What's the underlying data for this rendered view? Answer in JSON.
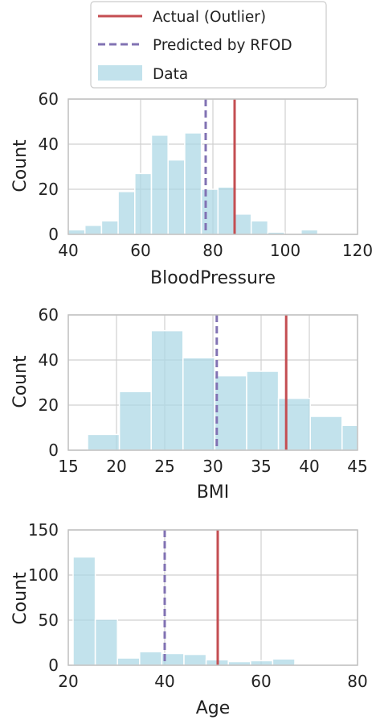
{
  "colors": {
    "actual": "#c44e52",
    "predicted": "#8172b3",
    "bars": "#add8e6",
    "grid": "#d0d0d0",
    "frame": "#c0c0c0"
  },
  "legend": {
    "placement": "top-center",
    "items": [
      {
        "label": "Actual (Outlier)",
        "style": "solid-line",
        "color": "#c44e52"
      },
      {
        "label": "Predicted by RFOD",
        "style": "dashed-line",
        "color": "#8172b3"
      },
      {
        "label": "Data",
        "style": "patch",
        "color": "#add8e6"
      }
    ]
  },
  "chart_data": [
    {
      "type": "bar",
      "xlabel": "BloodPressure",
      "ylabel": "Count",
      "xlim": [
        40,
        120
      ],
      "ylim": [
        0,
        60
      ],
      "xticks": [
        40,
        60,
        80,
        100,
        120
      ],
      "yticks": [
        0,
        20,
        40,
        60
      ],
      "grid": true,
      "bins": [
        {
          "x0": 40,
          "x1": 44.6,
          "count": 2
        },
        {
          "x0": 44.6,
          "x1": 49.2,
          "count": 4
        },
        {
          "x0": 49.2,
          "x1": 53.8,
          "count": 6
        },
        {
          "x0": 53.8,
          "x1": 58.4,
          "count": 19
        },
        {
          "x0": 58.4,
          "x1": 63.0,
          "count": 27
        },
        {
          "x0": 63.0,
          "x1": 67.6,
          "count": 44
        },
        {
          "x0": 67.6,
          "x1": 72.2,
          "count": 33
        },
        {
          "x0": 72.2,
          "x1": 76.8,
          "count": 45
        },
        {
          "x0": 76.8,
          "x1": 81.4,
          "count": 20
        },
        {
          "x0": 81.4,
          "x1": 86.0,
          "count": 21
        },
        {
          "x0": 86.0,
          "x1": 90.6,
          "count": 9
        },
        {
          "x0": 90.6,
          "x1": 95.2,
          "count": 6
        },
        {
          "x0": 95.2,
          "x1": 99.8,
          "count": 1
        },
        {
          "x0": 99.8,
          "x1": 104.4,
          "count": 0
        },
        {
          "x0": 104.4,
          "x1": 109.0,
          "count": 2
        }
      ],
      "actual": 86,
      "predicted": 78
    },
    {
      "type": "bar",
      "xlabel": "BMI",
      "ylabel": "Count",
      "xlim": [
        15,
        45
      ],
      "ylim": [
        0,
        60
      ],
      "xticks": [
        15,
        20,
        25,
        30,
        35,
        40,
        45
      ],
      "yticks": [
        0,
        20,
        40,
        60
      ],
      "grid": true,
      "bins": [
        {
          "x0": 17.0,
          "x1": 20.3,
          "count": 7
        },
        {
          "x0": 20.3,
          "x1": 23.6,
          "count": 26
        },
        {
          "x0": 23.6,
          "x1": 26.9,
          "count": 53
        },
        {
          "x0": 26.9,
          "x1": 30.2,
          "count": 41
        },
        {
          "x0": 30.2,
          "x1": 33.5,
          "count": 33
        },
        {
          "x0": 33.5,
          "x1": 36.8,
          "count": 35
        },
        {
          "x0": 36.8,
          "x1": 40.1,
          "count": 23
        },
        {
          "x0": 40.1,
          "x1": 43.4,
          "count": 15
        },
        {
          "x0": 43.4,
          "x1": 46.7,
          "count": 11
        }
      ],
      "actual": 37.6,
      "predicted": 30.4
    },
    {
      "type": "bar",
      "xlabel": "Age",
      "ylabel": "Count",
      "xlim": [
        20,
        80
      ],
      "ylim": [
        0,
        150
      ],
      "xticks": [
        20,
        40,
        60,
        80
      ],
      "yticks": [
        0,
        50,
        100,
        150
      ],
      "grid": true,
      "bins": [
        {
          "x0": 21.0,
          "x1": 25.6,
          "count": 120
        },
        {
          "x0": 25.6,
          "x1": 30.2,
          "count": 51
        },
        {
          "x0": 30.2,
          "x1": 34.8,
          "count": 8
        },
        {
          "x0": 34.8,
          "x1": 39.4,
          "count": 15
        },
        {
          "x0": 39.4,
          "x1": 44.0,
          "count": 13
        },
        {
          "x0": 44.0,
          "x1": 48.6,
          "count": 12
        },
        {
          "x0": 48.6,
          "x1": 53.2,
          "count": 6
        },
        {
          "x0": 53.2,
          "x1": 57.8,
          "count": 4
        },
        {
          "x0": 57.8,
          "x1": 62.4,
          "count": 5
        },
        {
          "x0": 62.4,
          "x1": 67.0,
          "count": 7
        },
        {
          "x0": 67.0,
          "x1": 71.6,
          "count": 1
        },
        {
          "x0": 71.6,
          "x1": 76.2,
          "count": 1
        },
        {
          "x0": 76.2,
          "x1": 80.8,
          "count": 0
        }
      ],
      "actual": 51,
      "predicted": 40
    }
  ]
}
